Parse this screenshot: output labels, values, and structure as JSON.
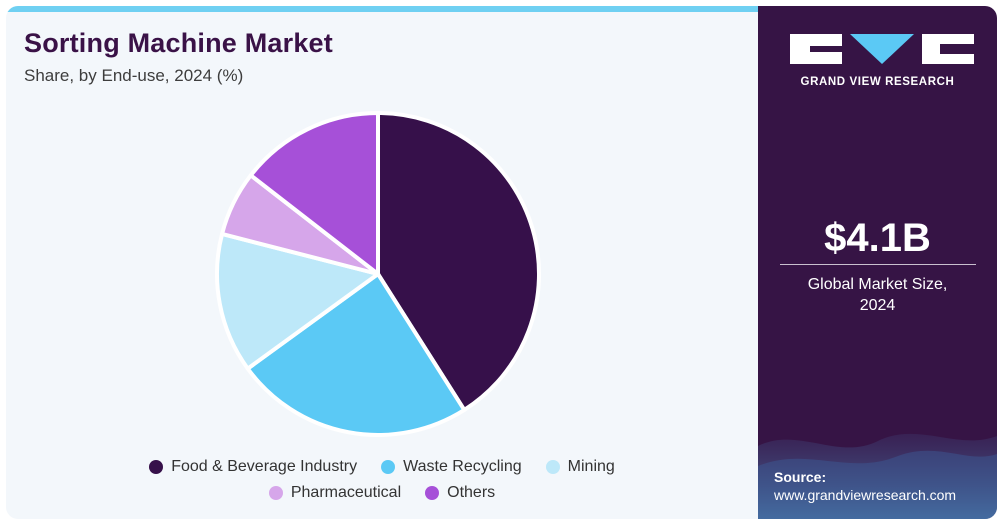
{
  "header": {
    "title": "Sorting Machine Market",
    "subtitle": "Share, by End-use, 2024 (%)"
  },
  "brand": {
    "name": "GRAND VIEW RESEARCH"
  },
  "kpi": {
    "value": "$4.1B",
    "label_line1": "Global Market Size,",
    "label_line2": "2024"
  },
  "source": {
    "label": "Source:",
    "url": "www.grandviewresearch.com"
  },
  "colors": {
    "food_beverage": "#36104a",
    "waste_recycling": "#5bc9f5",
    "mining": "#bde8f9",
    "pharmaceutical": "#d6a6ea",
    "others": "#a650d8"
  },
  "chart_data": {
    "type": "pie",
    "title": "Sorting Machine Market",
    "subtitle": "Share, by End-use, 2024 (%)",
    "start_angle_deg": 0,
    "direction": "clockwise",
    "legend_position": "bottom",
    "slices": [
      {
        "label": "Food & Beverage Industry",
        "value": 41,
        "color": "#36104a"
      },
      {
        "label": "Waste Recycling",
        "value": 24,
        "color": "#5bc9f5"
      },
      {
        "label": "Mining",
        "value": 14,
        "color": "#bde8f9"
      },
      {
        "label": "Pharmaceutical",
        "value": 6.5,
        "color": "#d6a6ea"
      },
      {
        "label": "Others",
        "value": 14.5,
        "color": "#a650d8"
      }
    ]
  }
}
